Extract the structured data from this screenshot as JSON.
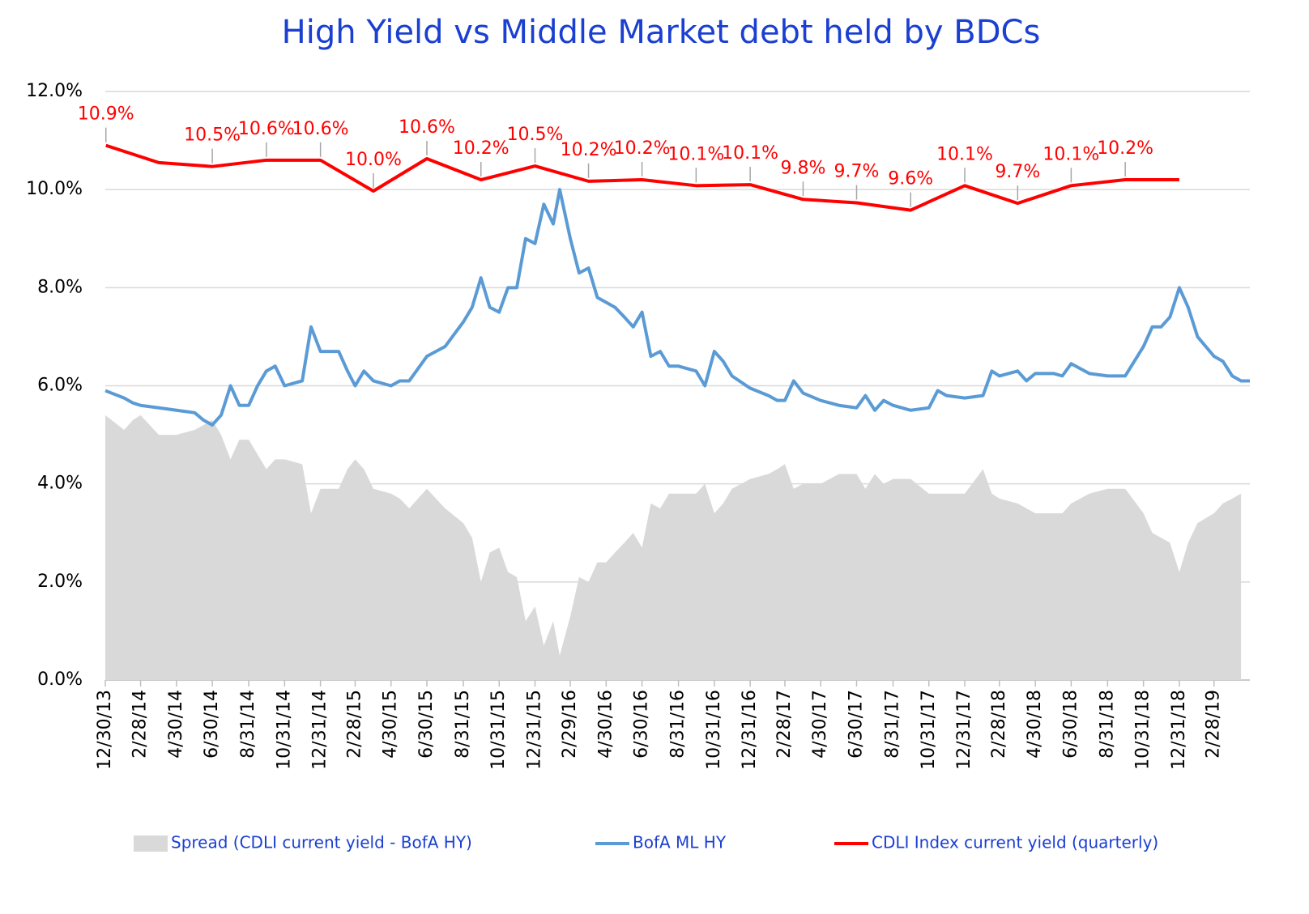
{
  "chart_data": {
    "type": "line",
    "title": "High Yield  vs  Middle Market debt held by BDCs",
    "xlim": [
      "2013-12-30",
      "2019-04-30"
    ],
    "xticks": [
      {
        "value": "2013-12-30",
        "label": "12/30/13"
      },
      {
        "value": "2014-02-28",
        "label": "2/28/14"
      },
      {
        "value": "2014-04-30",
        "label": "4/30/14"
      },
      {
        "value": "2014-06-30",
        "label": "6/30/14"
      },
      {
        "value": "2014-08-31",
        "label": "8/31/14"
      },
      {
        "value": "2014-10-31",
        "label": "10/31/14"
      },
      {
        "value": "2014-12-31",
        "label": "12/31/14"
      },
      {
        "value": "2015-02-28",
        "label": "2/28/15"
      },
      {
        "value": "2015-04-30",
        "label": "4/30/15"
      },
      {
        "value": "2015-06-30",
        "label": "6/30/15"
      },
      {
        "value": "2015-08-31",
        "label": "8/31/15"
      },
      {
        "value": "2015-10-31",
        "label": "10/31/15"
      },
      {
        "value": "2015-12-31",
        "label": "12/31/15"
      },
      {
        "value": "2016-02-29",
        "label": "2/29/16"
      },
      {
        "value": "2016-04-30",
        "label": "4/30/16"
      },
      {
        "value": "2016-06-30",
        "label": "6/30/16"
      },
      {
        "value": "2016-08-31",
        "label": "8/31/16"
      },
      {
        "value": "2016-10-31",
        "label": "10/31/16"
      },
      {
        "value": "2016-12-31",
        "label": "12/31/16"
      },
      {
        "value": "2017-02-28",
        "label": "2/28/17"
      },
      {
        "value": "2017-04-30",
        "label": "4/30/17"
      },
      {
        "value": "2017-06-30",
        "label": "6/30/17"
      },
      {
        "value": "2017-08-31",
        "label": "8/31/17"
      },
      {
        "value": "2017-10-31",
        "label": "10/31/17"
      },
      {
        "value": "2017-12-31",
        "label": "12/31/17"
      },
      {
        "value": "2018-02-28",
        "label": "2/28/18"
      },
      {
        "value": "2018-04-30",
        "label": "4/30/18"
      },
      {
        "value": "2018-06-30",
        "label": "6/30/18"
      },
      {
        "value": "2018-08-31",
        "label": "8/31/18"
      },
      {
        "value": "2018-10-31",
        "label": "10/31/18"
      },
      {
        "value": "2018-12-31",
        "label": "12/31/18"
      },
      {
        "value": "2019-02-28",
        "label": "2/28/19"
      }
    ],
    "ylim": [
      0,
      12
    ],
    "yticks": [
      {
        "value": 0,
        "label": "0.0%"
      },
      {
        "value": 2,
        "label": "2.0%"
      },
      {
        "value": 4,
        "label": "4.0%"
      },
      {
        "value": 6,
        "label": "6.0%"
      },
      {
        "value": 8,
        "label": "8.0%"
      },
      {
        "value": 10,
        "label": "10.0%"
      },
      {
        "value": 12,
        "label": "12.0%"
      }
    ],
    "grid": true,
    "legend": "bottom",
    "series": [
      {
        "name": "Spread (CDLI current yield - BofA HY)",
        "type": "area",
        "color": "#d9d9d9",
        "x": [
          "2013-12-30",
          "2014-01-31",
          "2014-02-15",
          "2014-02-28",
          "2014-03-31",
          "2014-04-30",
          "2014-05-31",
          "2014-06-15",
          "2014-06-30",
          "2014-07-15",
          "2014-07-31",
          "2014-08-15",
          "2014-08-31",
          "2014-09-15",
          "2014-09-30",
          "2014-10-15",
          "2014-10-31",
          "2014-11-30",
          "2014-12-15",
          "2014-12-31",
          "2015-01-31",
          "2015-02-15",
          "2015-02-28",
          "2015-03-15",
          "2015-03-31",
          "2015-04-30",
          "2015-05-15",
          "2015-05-31",
          "2015-06-30",
          "2015-07-31",
          "2015-08-31",
          "2015-09-15",
          "2015-09-30",
          "2015-10-15",
          "2015-10-31",
          "2015-11-15",
          "2015-11-30",
          "2015-12-15",
          "2015-12-31",
          "2016-01-15",
          "2016-01-31",
          "2016-02-11",
          "2016-02-29",
          "2016-03-15",
          "2016-03-31",
          "2016-04-15",
          "2016-04-30",
          "2016-05-15",
          "2016-05-31",
          "2016-06-15",
          "2016-06-30",
          "2016-07-15",
          "2016-07-31",
          "2016-08-15",
          "2016-08-31",
          "2016-09-30",
          "2016-10-15",
          "2016-10-31",
          "2016-11-15",
          "2016-11-30",
          "2016-12-31",
          "2017-01-31",
          "2017-02-15",
          "2017-02-28",
          "2017-03-15",
          "2017-03-31",
          "2017-04-30",
          "2017-05-31",
          "2017-06-30",
          "2017-07-15",
          "2017-07-31",
          "2017-08-15",
          "2017-08-31",
          "2017-09-30",
          "2017-10-31",
          "2017-11-15",
          "2017-11-30",
          "2017-12-31",
          "2018-01-31",
          "2018-02-15",
          "2018-02-28",
          "2018-03-31",
          "2018-04-15",
          "2018-04-30",
          "2018-05-31",
          "2018-06-15",
          "2018-06-30",
          "2018-07-31",
          "2018-08-31",
          "2018-09-30",
          "2018-10-31",
          "2018-11-15",
          "2018-11-30",
          "2018-12-15",
          "2018-12-31",
          "2019-01-15",
          "2019-01-31",
          "2019-02-28",
          "2019-03-15",
          "2019-03-31",
          "2019-04-15",
          "2019-04-30"
        ],
        "values": [
          5.4,
          5.1,
          5.3,
          5.4,
          5.0,
          5.0,
          5.1,
          5.2,
          5.3,
          5.0,
          4.5,
          4.9,
          4.9,
          4.6,
          4.3,
          4.5,
          4.5,
          4.4,
          3.4,
          3.9,
          3.9,
          4.3,
          4.5,
          4.3,
          3.9,
          3.8,
          3.7,
          3.5,
          3.9,
          3.5,
          3.2,
          2.9,
          2.0,
          2.6,
          2.7,
          2.2,
          2.1,
          1.2,
          1.5,
          0.7,
          1.2,
          0.5,
          1.3,
          2.1,
          2.0,
          2.4,
          2.4,
          2.6,
          2.8,
          3.0,
          2.7,
          3.6,
          3.5,
          3.8,
          3.8,
          3.8,
          4.0,
          3.4,
          3.6,
          3.9,
          4.1,
          4.2,
          4.3,
          4.4,
          3.9,
          4.0,
          4.0,
          4.2,
          4.2,
          3.9,
          4.2,
          4.0,
          4.1,
          4.1,
          3.8,
          3.8,
          3.8,
          3.8,
          4.3,
          3.8,
          3.7,
          3.6,
          3.5,
          3.4,
          3.4,
          3.4,
          3.6,
          3.8,
          3.9,
          3.9,
          3.4,
          3.0,
          2.9,
          2.8,
          2.2,
          2.8,
          3.2,
          3.4,
          3.6,
          3.7,
          3.8,
          null
        ]
      },
      {
        "name": "BofA ML HY",
        "type": "line",
        "color": "#5b9bd5",
        "x": [
          "2013-12-30",
          "2014-01-31",
          "2014-02-15",
          "2014-02-28",
          "2014-03-31",
          "2014-04-30",
          "2014-05-31",
          "2014-06-15",
          "2014-06-30",
          "2014-07-15",
          "2014-07-31",
          "2014-08-15",
          "2014-08-31",
          "2014-09-15",
          "2014-09-30",
          "2014-10-15",
          "2014-10-31",
          "2014-11-30",
          "2014-12-15",
          "2014-12-31",
          "2015-01-31",
          "2015-02-15",
          "2015-02-28",
          "2015-03-15",
          "2015-03-31",
          "2015-04-30",
          "2015-05-15",
          "2015-05-31",
          "2015-06-30",
          "2015-07-31",
          "2015-08-31",
          "2015-09-15",
          "2015-09-30",
          "2015-10-15",
          "2015-10-31",
          "2015-11-15",
          "2015-11-30",
          "2015-12-15",
          "2015-12-31",
          "2016-01-15",
          "2016-01-31",
          "2016-02-11",
          "2016-02-29",
          "2016-03-15",
          "2016-03-31",
          "2016-04-15",
          "2016-04-30",
          "2016-05-15",
          "2016-05-31",
          "2016-06-15",
          "2016-06-30",
          "2016-07-15",
          "2016-07-31",
          "2016-08-15",
          "2016-08-31",
          "2016-09-30",
          "2016-10-15",
          "2016-10-31",
          "2016-11-15",
          "2016-11-30",
          "2016-12-31",
          "2017-01-31",
          "2017-02-15",
          "2017-02-28",
          "2017-03-15",
          "2017-03-31",
          "2017-04-30",
          "2017-05-31",
          "2017-06-30",
          "2017-07-15",
          "2017-07-31",
          "2017-08-15",
          "2017-08-31",
          "2017-09-30",
          "2017-10-31",
          "2017-11-15",
          "2017-11-30",
          "2017-12-31",
          "2018-01-31",
          "2018-02-15",
          "2018-02-28",
          "2018-03-31",
          "2018-04-15",
          "2018-04-30",
          "2018-05-31",
          "2018-06-15",
          "2018-06-30",
          "2018-07-31",
          "2018-08-31",
          "2018-09-30",
          "2018-10-31",
          "2018-11-15",
          "2018-11-30",
          "2018-12-15",
          "2018-12-31",
          "2019-01-15",
          "2019-01-31",
          "2019-02-28",
          "2019-03-15",
          "2019-03-31",
          "2019-04-15",
          "2019-04-30"
        ],
        "values": [
          5.9,
          5.75,
          5.65,
          5.6,
          5.55,
          5.5,
          5.45,
          5.3,
          5.2,
          5.4,
          6.0,
          5.6,
          5.6,
          6.0,
          6.3,
          6.4,
          6.0,
          6.1,
          7.2,
          6.7,
          6.7,
          6.3,
          6.0,
          6.3,
          6.1,
          6.0,
          6.1,
          6.1,
          6.6,
          6.8,
          7.3,
          7.6,
          8.2,
          7.6,
          7.5,
          8.0,
          8.0,
          9.0,
          8.9,
          9.7,
          9.3,
          10.0,
          9.0,
          8.3,
          8.4,
          7.8,
          7.7,
          7.6,
          7.4,
          7.2,
          7.5,
          6.6,
          6.7,
          6.4,
          6.4,
          6.3,
          6.0,
          6.7,
          6.5,
          6.2,
          5.95,
          5.8,
          5.7,
          5.7,
          6.1,
          5.85,
          5.7,
          5.6,
          5.55,
          5.8,
          5.5,
          5.7,
          5.6,
          5.5,
          5.55,
          5.9,
          5.8,
          5.75,
          5.8,
          6.3,
          6.2,
          6.3,
          6.1,
          6.25,
          6.25,
          6.2,
          6.45,
          6.25,
          6.2,
          6.2,
          6.8,
          7.2,
          7.2,
          7.4,
          8.0,
          7.6,
          7.0,
          6.6,
          6.5,
          6.2,
          6.1,
          6.1
        ]
      },
      {
        "name": "CDLI Index current yield (quarterly)",
        "type": "line",
        "color": "#ff0000",
        "x": [
          "2013-12-31",
          "2014-03-31",
          "2014-06-30",
          "2014-09-30",
          "2014-12-31",
          "2015-03-31",
          "2015-06-30",
          "2015-09-30",
          "2015-12-31",
          "2016-03-31",
          "2016-06-30",
          "2016-09-30",
          "2016-12-31",
          "2017-03-31",
          "2017-06-30",
          "2017-09-30",
          "2017-12-31",
          "2018-03-31",
          "2018-06-30",
          "2018-09-30",
          "2018-12-31"
        ],
        "values": [
          10.9,
          10.55,
          10.47,
          10.6,
          10.6,
          9.97,
          10.63,
          10.2,
          10.48,
          10.17,
          10.2,
          10.08,
          10.1,
          9.8,
          9.73,
          9.58,
          10.08,
          9.72,
          10.08,
          10.2,
          10.2
        ],
        "value_labels": [
          "10.9%",
          null,
          "10.5%",
          "10.6%",
          "10.6%",
          "10.0%",
          "10.6%",
          "10.2%",
          "10.5%",
          "10.2%",
          "10.2%",
          "10.1%",
          "10.1%",
          "9.8%",
          "9.7%",
          "9.6%",
          "10.1%",
          "9.7%",
          "10.1%",
          "10.2%",
          null
        ]
      }
    ]
  }
}
